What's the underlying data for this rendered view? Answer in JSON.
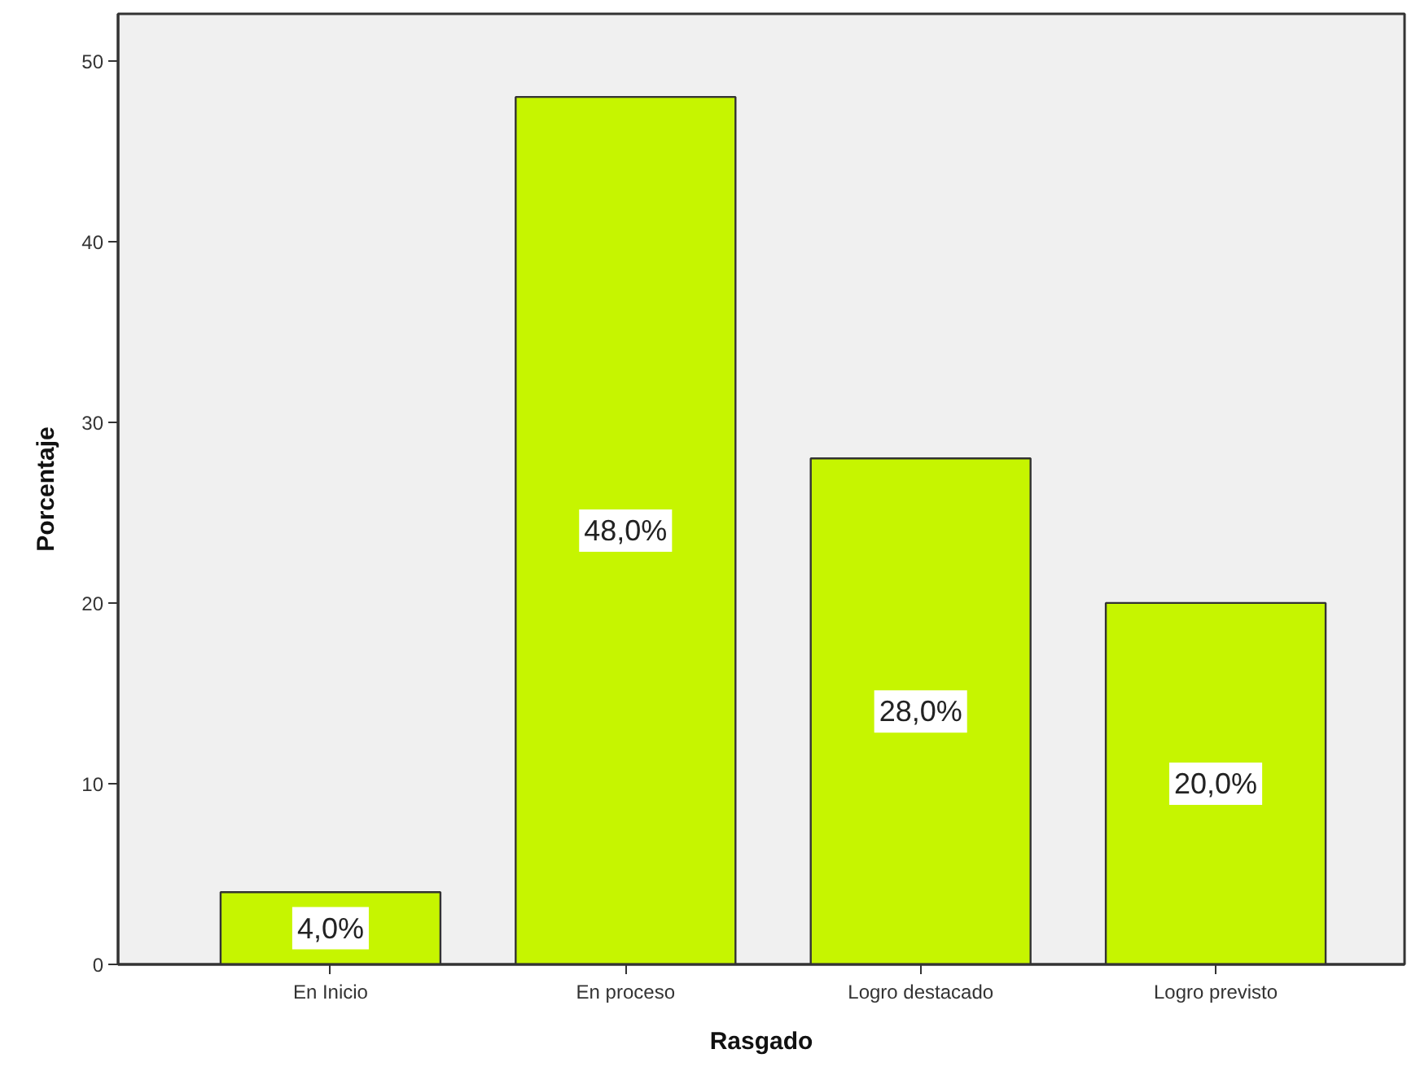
{
  "chart_data": {
    "type": "bar",
    "categories": [
      "En Inicio",
      "En proceso",
      "Logro destacado",
      "Logro previsto"
    ],
    "values": [
      4,
      48,
      28,
      20
    ],
    "value_labels": [
      "4,0%",
      "48,0%",
      "28,0%",
      "20,0%"
    ],
    "color": "#c6f500",
    "xlabel": "Rasgado",
    "ylabel": "Porcentaje",
    "ylim": [
      0,
      52.6
    ],
    "yticks": [
      0,
      10,
      20,
      30,
      40,
      50
    ],
    "grid": false
  }
}
